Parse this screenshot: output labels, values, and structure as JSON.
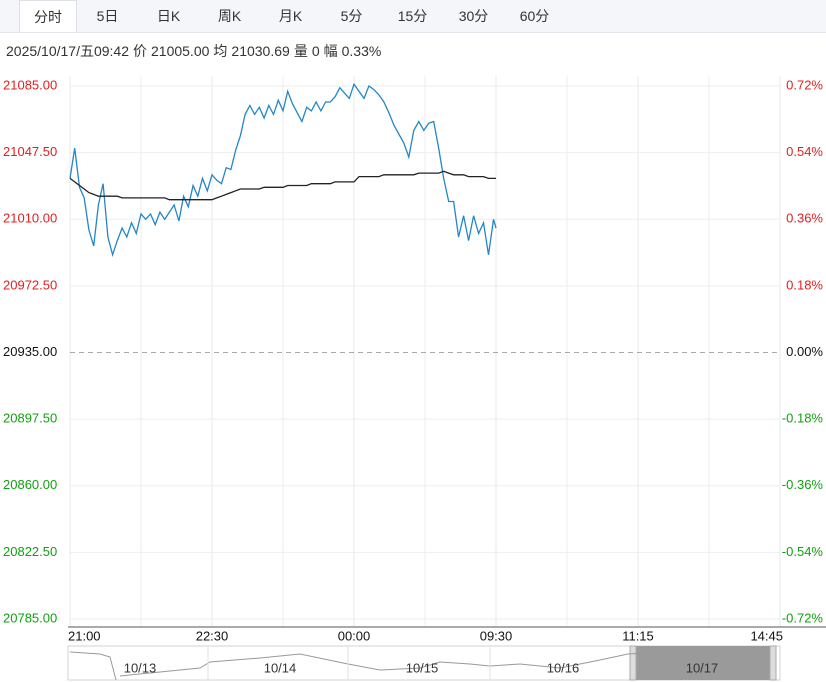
{
  "tabs": [
    "分时",
    "5日",
    "日K",
    "周K",
    "月K",
    "5分",
    "15分",
    "30分",
    "60分"
  ],
  "info": {
    "datetime": "2025/10/17/五09:42",
    "items": [
      {
        "label": "价",
        "value": "21005.00"
      },
      {
        "label": "均",
        "value": "21030.69"
      },
      {
        "label": "量",
        "value": "0"
      },
      {
        "label": "幅",
        "value": "0.33%"
      }
    ]
  },
  "chart_data": {
    "type": "line",
    "x": [
      "21:00",
      "21:03",
      "21:06",
      "21:09",
      "21:12",
      "21:15",
      "21:18",
      "21:21",
      "21:24",
      "21:27",
      "21:30",
      "21:33",
      "21:36",
      "21:39",
      "21:42",
      "21:45",
      "21:48",
      "21:51",
      "21:54",
      "21:57",
      "22:00",
      "22:03",
      "22:06",
      "22:09",
      "22:12",
      "22:15",
      "22:18",
      "22:21",
      "22:24",
      "22:27",
      "22:30",
      "22:33",
      "22:36",
      "22:39",
      "22:42",
      "22:45",
      "22:48",
      "22:51",
      "22:54",
      "22:57",
      "23:00",
      "23:03",
      "23:06",
      "23:09",
      "23:12",
      "23:15",
      "23:18",
      "23:21",
      "23:24",
      "23:27",
      "23:30",
      "23:33",
      "23:36",
      "23:39",
      "23:42",
      "23:45",
      "23:48",
      "23:51",
      "23:54",
      "23:57",
      "00:00",
      "00:20",
      "00:40",
      "01:00",
      "01:20",
      "01:40",
      "02:00",
      "02:20",
      "02:40",
      "03:00",
      "03:20",
      "03:40",
      "04:00",
      "04:20",
      "04:40",
      "05:00",
      "05:20",
      "05:40",
      "06:00",
      "06:20",
      "06:40",
      "07:00",
      "07:20",
      "07:40",
      "08:00",
      "08:20",
      "08:40",
      "09:00",
      "09:20",
      "09:30"
    ],
    "series": [
      {
        "color": "#2386c8",
        "values": [
          21033,
          21050,
          21028,
          21022,
          21004,
          20995,
          21018,
          21030,
          21000,
          20990,
          20998,
          21005,
          21000,
          21008,
          21002,
          21013,
          21010,
          21013,
          21007,
          21014,
          21010,
          21014,
          21018,
          21009,
          21023,
          21017,
          21029,
          21023,
          21033,
          21026,
          21035,
          21032,
          21030,
          21039,
          21038,
          21049,
          21057,
          21069,
          21074,
          21069,
          21073,
          21067,
          21074,
          21069,
          21077,
          21071,
          21082,
          21075,
          21070,
          21065,
          21073,
          21071,
          21076,
          21071,
          21076,
          21076,
          21079,
          21084,
          21081,
          21078,
          21086,
          21082,
          21078,
          21085,
          21083,
          21080,
          21076,
          21070,
          21063,
          21058,
          21053,
          21045,
          21060,
          21065,
          21060,
          21064,
          21065,
          21050,
          21033,
          21020,
          21020,
          21000,
          21012,
          20998,
          21012,
          21002,
          21008,
          20990,
          21010,
          21005
        ]
      },
      {
        "color": "#222222",
        "values": [
          21033,
          21031,
          21029,
          21027,
          21025,
          21024,
          21023,
          21023,
          21023,
          21023,
          21023,
          21022,
          21022,
          21022,
          21022,
          21022,
          21022,
          21022,
          21022,
          21022,
          21022,
          21021,
          21021,
          21021,
          21021,
          21021,
          21021,
          21021,
          21021,
          21021,
          21021,
          21022,
          21023,
          21024,
          21025,
          21026,
          21027,
          21027,
          21027,
          21027,
          21027,
          21028,
          21028,
          21028,
          21028,
          21028,
          21029,
          21029,
          21029,
          21029,
          21029,
          21030,
          21030,
          21030,
          21030,
          21030,
          21031,
          21031,
          21031,
          21031,
          21031,
          21034,
          21034,
          21034,
          21034,
          21034,
          21035,
          21035,
          21035,
          21035,
          21035,
          21035,
          21035,
          21036,
          21036,
          21036,
          21036,
          21036,
          21037,
          21036,
          21035,
          21035,
          21035,
          21034,
          21034,
          21034,
          21034,
          21033,
          21033,
          21033
        ]
      }
    ],
    "ylim": [
      20785,
      21085
    ],
    "yticks": [
      {
        "value": 21085,
        "label": "21085.00"
      },
      {
        "value": 21047.5,
        "label": "21047.50"
      },
      {
        "value": 21010,
        "label": "21010.00"
      },
      {
        "value": 20972.5,
        "label": "20972.50"
      },
      {
        "value": 20935,
        "label": "20935.00"
      },
      {
        "value": 20897.5,
        "label": "20897.50"
      },
      {
        "value": 20860,
        "label": "20860.00"
      },
      {
        "value": 20822.5,
        "label": "20822.50"
      },
      {
        "value": 20785,
        "label": "20785.00"
      }
    ],
    "y2lim": [
      -0.72,
      0.72
    ],
    "y2ticks": [
      {
        "value": 0.72,
        "label": "0.72%"
      },
      {
        "value": 0.54,
        "label": "0.54%"
      },
      {
        "value": 0.36,
        "label": "0.36%"
      },
      {
        "value": 0.18,
        "label": "0.18%"
      },
      {
        "value": 0,
        "label": "0.00%"
      },
      {
        "value": -0.18,
        "label": "-0.18%"
      },
      {
        "value": -0.36,
        "label": "-0.36%"
      },
      {
        "value": -0.54,
        "label": "-0.54%"
      },
      {
        "value": -0.72,
        "label": "-0.72%"
      }
    ],
    "xticks": [
      "21:00",
      "22:30",
      "00:00",
      "09:30",
      "11:15",
      "14:45"
    ],
    "baseline": 20935,
    "up_color": "#e02020",
    "down_color": "#10a010",
    "grid": true,
    "navigator": [
      "10/13",
      "10/14",
      "10/15",
      "10/16",
      "10/17"
    ]
  }
}
